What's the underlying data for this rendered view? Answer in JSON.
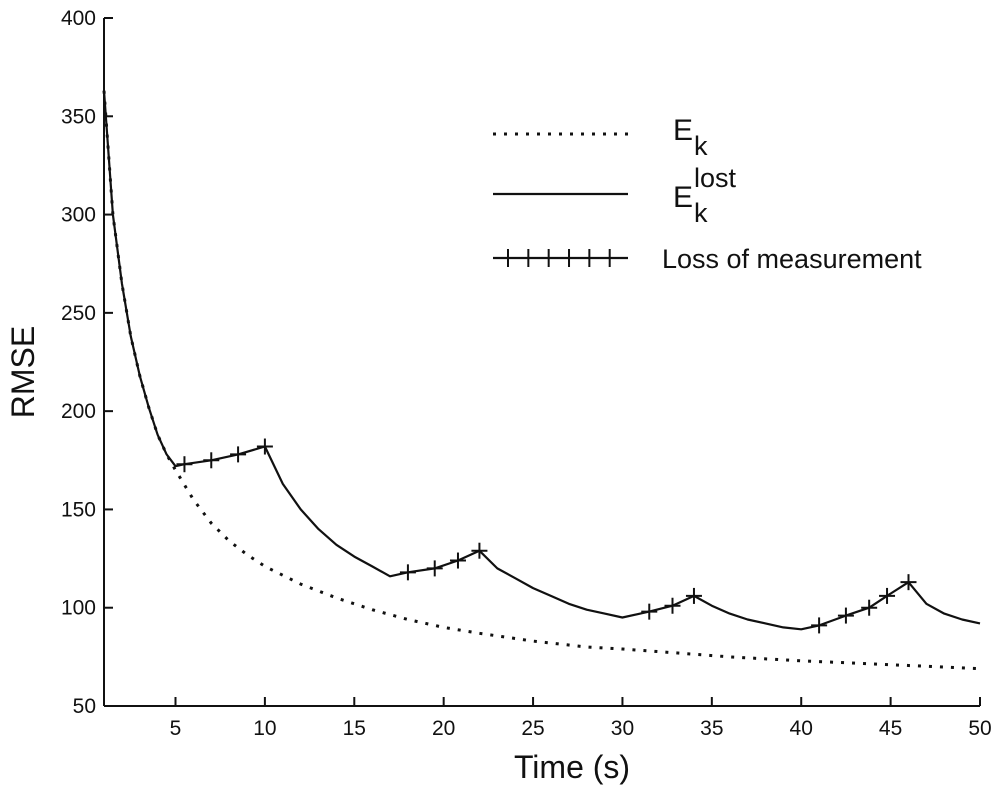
{
  "chart_data": {
    "type": "line",
    "title": "",
    "xlabel": "Time (s)",
    "ylabel": "RMSE",
    "xlim": [
      1,
      50
    ],
    "ylim": [
      50,
      400
    ],
    "xticks": [
      5,
      10,
      15,
      20,
      25,
      30,
      35,
      40,
      45,
      50
    ],
    "yticks": [
      50,
      100,
      150,
      200,
      250,
      300,
      350,
      400
    ],
    "grid": false,
    "legend_position": "top-right",
    "series": [
      {
        "name": "E_k",
        "legend_main": "E",
        "legend_sub": "k",
        "legend_sup": "",
        "style": "dotted",
        "x": [
          1,
          1.5,
          2,
          2.5,
          3,
          3.5,
          4,
          4.5,
          5,
          6,
          7,
          8,
          9,
          10,
          12,
          14,
          16,
          18,
          20,
          22,
          25,
          28,
          30,
          33,
          36,
          40,
          45,
          50
        ],
        "y": [
          363,
          300,
          265,
          238,
          218,
          202,
          188,
          178,
          170,
          155,
          143,
          134,
          127,
          121,
          112,
          105,
          99,
          94,
          90,
          87,
          83,
          80,
          79,
          77,
          75,
          73,
          71,
          69
        ]
      },
      {
        "name": "E_k^lost",
        "legend_main": "E",
        "legend_sub": "k",
        "legend_sup": "lost",
        "style": "solid",
        "x": [
          1,
          1.5,
          2,
          2.5,
          3,
          3.5,
          4,
          4.5,
          5,
          5.5,
          7,
          8.5,
          10,
          11,
          12,
          13,
          14,
          15,
          16,
          17,
          18,
          19.5,
          20.8,
          22,
          23,
          24,
          25,
          26,
          27,
          28,
          29,
          30,
          31.5,
          32.8,
          34,
          35,
          36,
          37,
          38,
          39,
          40,
          41,
          42.5,
          43.8,
          44.8,
          46,
          47,
          48,
          49,
          50
        ],
        "y": [
          363,
          300,
          265,
          238,
          218,
          202,
          188,
          178,
          172,
          173,
          175,
          178,
          182,
          163,
          150,
          140,
          132,
          126,
          121,
          116,
          118,
          120,
          124,
          129,
          120,
          115,
          110,
          106,
          102,
          99,
          97,
          95,
          98,
          101,
          106,
          101,
          97,
          94,
          92,
          90,
          89,
          91,
          96,
          100,
          106,
          113,
          102,
          97,
          94,
          92
        ]
      },
      {
        "name": "Loss of measurement",
        "legend_label": "Loss of measurement",
        "style": "markers",
        "x": [
          5.5,
          7,
          8.5,
          10,
          18,
          19.5,
          20.8,
          22,
          31.5,
          32.8,
          34,
          41,
          42.5,
          43.8,
          44.8,
          46
        ],
        "y": [
          173,
          175,
          178,
          182,
          118,
          120,
          124,
          129,
          98,
          101,
          106,
          91,
          96,
          100,
          106,
          113
        ]
      }
    ]
  }
}
